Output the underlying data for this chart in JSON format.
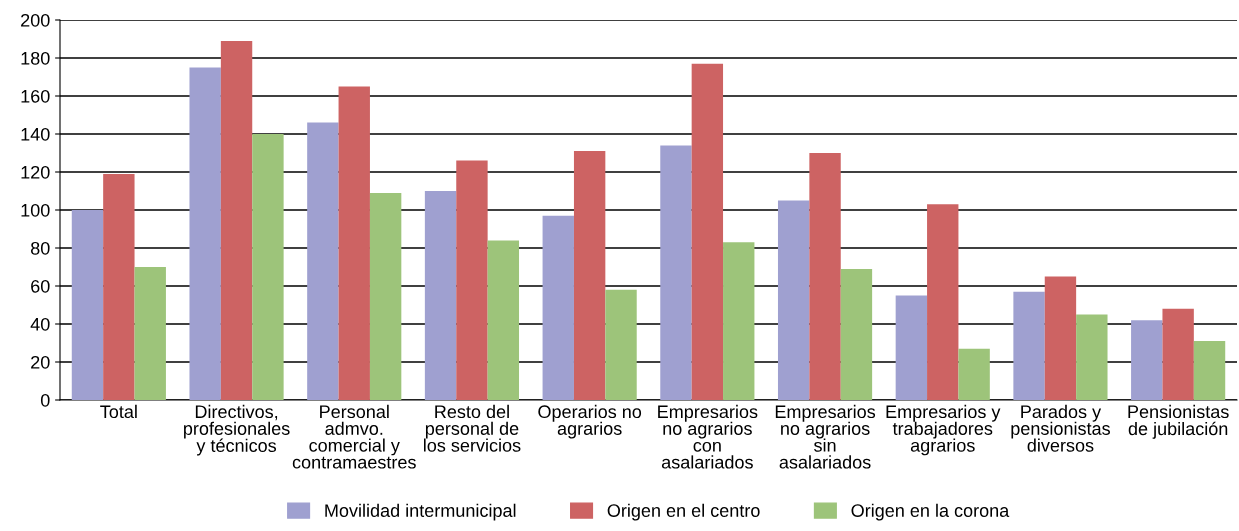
{
  "chart_data": {
    "type": "bar",
    "categories": [
      "Total",
      "Directivos,\nprofesionales\ny técnicos",
      "Personal\nadmvo.\ncomercial y\ncontramaestres",
      "Resto del\npersonal de\nlos servicios",
      "Operarios no\nagrarios",
      "Empresarios\nno agrarios\ncon\nasalariados",
      "Empresarios\nno agrarios\nsin\nasalariados",
      "Empresarios y\ntrabajadores\nagrarios",
      "Parados y\npensionistas\ndiversos",
      "Pensionistas\nde jubilación"
    ],
    "series": [
      {
        "name": "Movilidad intermunicipal",
        "color": "#9fa0d0",
        "values": [
          100,
          175,
          146,
          110,
          97,
          134,
          105,
          55,
          57,
          42
        ]
      },
      {
        "name": "Origen en el centro",
        "color": "#cd6363",
        "values": [
          119,
          189,
          165,
          126,
          131,
          177,
          130,
          103,
          65,
          48
        ]
      },
      {
        "name": "Origen en la corona",
        "color": "#9dc47a",
        "values": [
          70,
          140,
          109,
          84,
          58,
          83,
          69,
          27,
          45,
          31
        ]
      }
    ],
    "ylim": [
      0,
      200
    ],
    "yticks": [
      0,
      20,
      40,
      60,
      80,
      100,
      120,
      140,
      160,
      180,
      200
    ],
    "grid": "y",
    "legend": "bottom"
  }
}
